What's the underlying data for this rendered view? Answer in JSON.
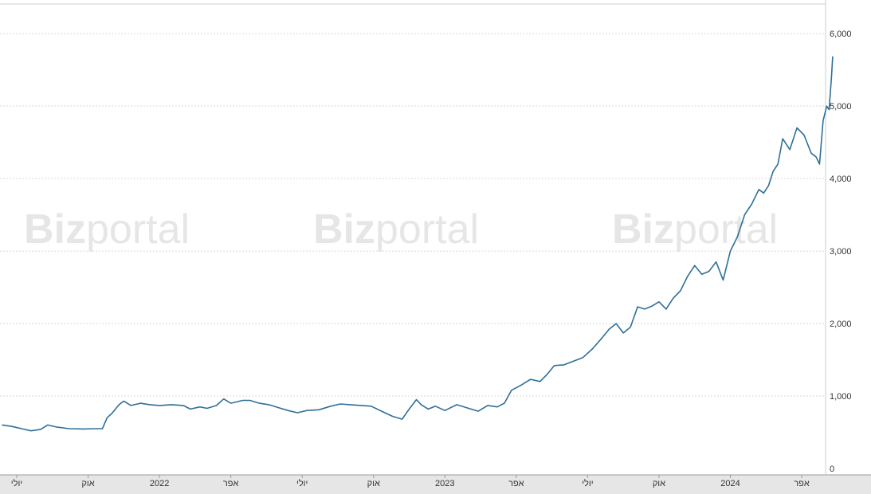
{
  "watermark": {
    "bold": "Biz",
    "light": "portal"
  },
  "colors": {
    "line": "#2f6f98",
    "grid": "#d8d8d8",
    "axis_band": "#e6e6e6",
    "text": "#333333",
    "watermark": "#e6e6e6"
  },
  "chart_data": {
    "type": "line",
    "title": "",
    "xlabel": "",
    "ylabel": "",
    "grid": true,
    "ylim": [
      0,
      6200
    ],
    "y_ticks": [
      {
        "value": 0,
        "label": "0"
      },
      {
        "value": 1000,
        "label": "1,000"
      },
      {
        "value": 2000,
        "label": "2,000"
      },
      {
        "value": 3000,
        "label": "3,000"
      },
      {
        "value": 4000,
        "label": "4,000"
      },
      {
        "value": 5000,
        "label": "5,000"
      },
      {
        "value": 6000,
        "label": "6,000"
      }
    ],
    "x_ticks": [
      {
        "value": 0,
        "label": "יולי"
      },
      {
        "value": 3,
        "label": "אוק"
      },
      {
        "value": 6,
        "label": "2022"
      },
      {
        "value": 9,
        "label": "אפר"
      },
      {
        "value": 12,
        "label": "יולי"
      },
      {
        "value": 15,
        "label": "אוק"
      },
      {
        "value": 18,
        "label": "2023"
      },
      {
        "value": 21,
        "label": "אפר"
      },
      {
        "value": 24,
        "label": "יולי"
      },
      {
        "value": 27,
        "label": "אוק"
      },
      {
        "value": 30,
        "label": "2024"
      },
      {
        "value": 33,
        "label": "אפר"
      }
    ],
    "xlim": [
      -0.6,
      34.3
    ],
    "series": [
      {
        "points": [
          [
            -0.6,
            600
          ],
          [
            -0.2,
            580
          ],
          [
            0.2,
            550
          ],
          [
            0.6,
            520
          ],
          [
            1.0,
            540
          ],
          [
            1.3,
            600
          ],
          [
            1.7,
            570
          ],
          [
            2.2,
            550
          ],
          [
            2.8,
            545
          ],
          [
            3.3,
            550
          ],
          [
            3.6,
            550
          ],
          [
            3.8,
            700
          ],
          [
            4.0,
            760
          ],
          [
            4.3,
            880
          ],
          [
            4.5,
            930
          ],
          [
            4.8,
            870
          ],
          [
            5.2,
            900
          ],
          [
            5.6,
            880
          ],
          [
            6.0,
            870
          ],
          [
            6.5,
            880
          ],
          [
            7.0,
            870
          ],
          [
            7.3,
            820
          ],
          [
            7.7,
            850
          ],
          [
            8.0,
            830
          ],
          [
            8.4,
            870
          ],
          [
            8.7,
            960
          ],
          [
            9.0,
            900
          ],
          [
            9.5,
            940
          ],
          [
            9.8,
            940
          ],
          [
            10.2,
            900
          ],
          [
            10.6,
            880
          ],
          [
            11.0,
            840
          ],
          [
            11.4,
            800
          ],
          [
            11.8,
            770
          ],
          [
            12.2,
            800
          ],
          [
            12.7,
            810
          ],
          [
            13.2,
            860
          ],
          [
            13.6,
            890
          ],
          [
            14.0,
            880
          ],
          [
            14.5,
            870
          ],
          [
            14.9,
            860
          ],
          [
            15.4,
            780
          ],
          [
            15.8,
            720
          ],
          [
            16.2,
            680
          ],
          [
            16.5,
            820
          ],
          [
            16.8,
            950
          ],
          [
            17.0,
            880
          ],
          [
            17.3,
            820
          ],
          [
            17.6,
            860
          ],
          [
            18.0,
            800
          ],
          [
            18.5,
            880
          ],
          [
            19.0,
            830
          ],
          [
            19.4,
            790
          ],
          [
            19.8,
            870
          ],
          [
            20.2,
            850
          ],
          [
            20.5,
            900
          ],
          [
            20.8,
            1080
          ],
          [
            21.2,
            1150
          ],
          [
            21.6,
            1230
          ],
          [
            22.0,
            1200
          ],
          [
            22.3,
            1300
          ],
          [
            22.6,
            1420
          ],
          [
            23.0,
            1430
          ],
          [
            23.4,
            1480
          ],
          [
            23.8,
            1530
          ],
          [
            24.2,
            1650
          ],
          [
            24.6,
            1800
          ],
          [
            24.9,
            1920
          ],
          [
            25.2,
            2000
          ],
          [
            25.5,
            1870
          ],
          [
            25.8,
            1950
          ],
          [
            26.1,
            2230
          ],
          [
            26.4,
            2200
          ],
          [
            26.7,
            2240
          ],
          [
            27.0,
            2300
          ],
          [
            27.3,
            2200
          ],
          [
            27.6,
            2350
          ],
          [
            27.9,
            2450
          ],
          [
            28.2,
            2650
          ],
          [
            28.5,
            2800
          ],
          [
            28.8,
            2680
          ],
          [
            29.1,
            2720
          ],
          [
            29.4,
            2850
          ],
          [
            29.7,
            2600
          ],
          [
            30.0,
            3000
          ],
          [
            30.3,
            3200
          ],
          [
            30.6,
            3500
          ],
          [
            30.9,
            3650
          ],
          [
            31.2,
            3850
          ],
          [
            31.4,
            3800
          ],
          [
            31.6,
            3900
          ],
          [
            31.8,
            4100
          ],
          [
            32.0,
            4200
          ],
          [
            32.2,
            4550
          ],
          [
            32.5,
            4400
          ],
          [
            32.8,
            4700
          ],
          [
            33.1,
            4600
          ],
          [
            33.4,
            4350
          ],
          [
            33.6,
            4300
          ],
          [
            33.75,
            4200
          ],
          [
            33.9,
            4800
          ],
          [
            34.05,
            5000
          ],
          [
            34.15,
            4950
          ],
          [
            34.25,
            5400
          ],
          [
            34.3,
            5680
          ]
        ]
      }
    ]
  }
}
